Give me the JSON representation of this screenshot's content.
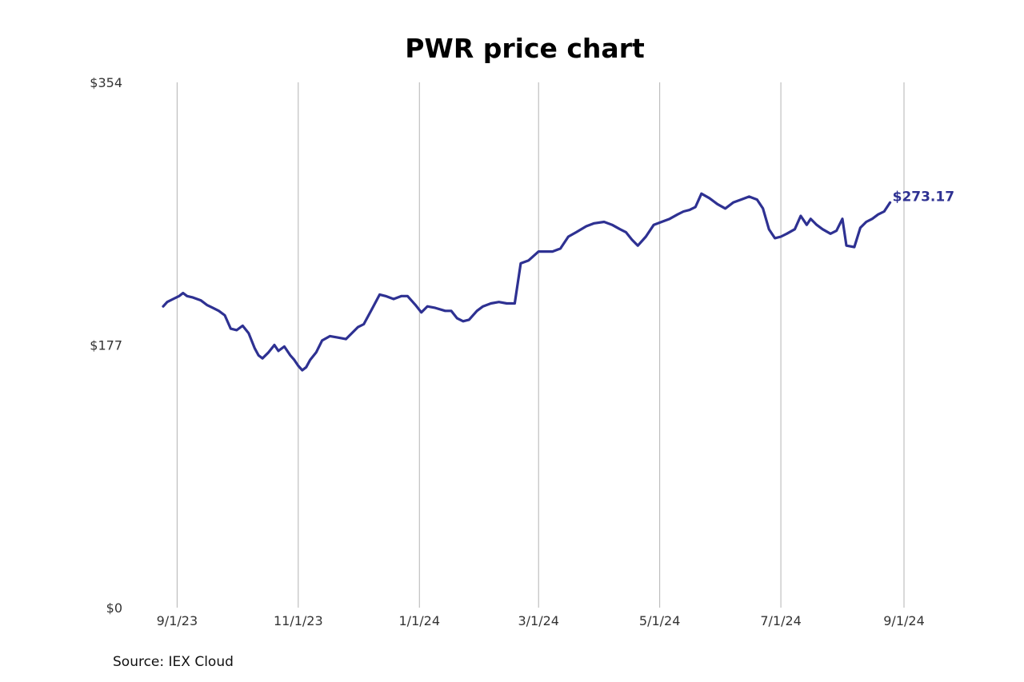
{
  "chart_data": {
    "type": "line",
    "title": "PWR price chart",
    "source": "Source: IEX Cloud",
    "last_value_label": "$273.17",
    "line_color": "#2e3192",
    "y_axis": {
      "min": 0,
      "max": 354,
      "ticks": [
        {
          "value": 354,
          "label": "$354"
        },
        {
          "value": 177,
          "label": "$177"
        },
        {
          "value": 0,
          "label": "$0"
        }
      ]
    },
    "x_axis": {
      "start": "2023-08-25",
      "end": "2024-09-01",
      "gridlines": true,
      "ticks": [
        {
          "date": "2023-09-01",
          "label": "9/1/23"
        },
        {
          "date": "2023-11-01",
          "label": "11/1/23"
        },
        {
          "date": "2024-01-01",
          "label": "1/1/24"
        },
        {
          "date": "2024-03-01",
          "label": "3/1/24"
        },
        {
          "date": "2024-05-01",
          "label": "5/1/24"
        },
        {
          "date": "2024-07-01",
          "label": "7/1/24"
        },
        {
          "date": "2024-09-01",
          "label": "9/1/24"
        }
      ]
    },
    "series": [
      {
        "points": [
          [
            "2023-08-25",
            203
          ],
          [
            "2023-08-27",
            206
          ],
          [
            "2023-08-30",
            208
          ],
          [
            "2023-09-02",
            210
          ],
          [
            "2023-09-04",
            212
          ],
          [
            "2023-09-06",
            210
          ],
          [
            "2023-09-09",
            209
          ],
          [
            "2023-09-13",
            207
          ],
          [
            "2023-09-16",
            204
          ],
          [
            "2023-09-19",
            202
          ],
          [
            "2023-09-22",
            200
          ],
          [
            "2023-09-25",
            197
          ],
          [
            "2023-09-28",
            188
          ],
          [
            "2023-10-01",
            187
          ],
          [
            "2023-10-04",
            190
          ],
          [
            "2023-10-07",
            185
          ],
          [
            "2023-10-10",
            175
          ],
          [
            "2023-10-12",
            170
          ],
          [
            "2023-10-14",
            168
          ],
          [
            "2023-10-17",
            172
          ],
          [
            "2023-10-20",
            177
          ],
          [
            "2023-10-22",
            173
          ],
          [
            "2023-10-25",
            176
          ],
          [
            "2023-10-28",
            170
          ],
          [
            "2023-10-30",
            167
          ],
          [
            "2023-11-01",
            163
          ],
          [
            "2023-11-03",
            160
          ],
          [
            "2023-11-05",
            162
          ],
          [
            "2023-11-07",
            167
          ],
          [
            "2023-11-10",
            172
          ],
          [
            "2023-11-13",
            180
          ],
          [
            "2023-11-17",
            183
          ],
          [
            "2023-11-21",
            182
          ],
          [
            "2023-11-25",
            181
          ],
          [
            "2023-11-28",
            185
          ],
          [
            "2023-12-01",
            189
          ],
          [
            "2023-12-04",
            191
          ],
          [
            "2023-12-08",
            201
          ],
          [
            "2023-12-12",
            211
          ],
          [
            "2023-12-15",
            210
          ],
          [
            "2023-12-19",
            208
          ],
          [
            "2023-12-23",
            210
          ],
          [
            "2023-12-26",
            210
          ],
          [
            "2023-12-30",
            204
          ],
          [
            "2024-01-02",
            199
          ],
          [
            "2024-01-05",
            203
          ],
          [
            "2024-01-09",
            202
          ],
          [
            "2024-01-14",
            200
          ],
          [
            "2024-01-17",
            200
          ],
          [
            "2024-01-20",
            195
          ],
          [
            "2024-01-23",
            193
          ],
          [
            "2024-01-26",
            194
          ],
          [
            "2024-01-30",
            200
          ],
          [
            "2024-02-02",
            203
          ],
          [
            "2024-02-06",
            205
          ],
          [
            "2024-02-10",
            206
          ],
          [
            "2024-02-14",
            205
          ],
          [
            "2024-02-18",
            205
          ],
          [
            "2024-02-21",
            232
          ],
          [
            "2024-02-25",
            234
          ],
          [
            "2024-03-01",
            240
          ],
          [
            "2024-03-04",
            240
          ],
          [
            "2024-03-08",
            240
          ],
          [
            "2024-03-12",
            242
          ],
          [
            "2024-03-16",
            250
          ],
          [
            "2024-03-20",
            253
          ],
          [
            "2024-03-25",
            257
          ],
          [
            "2024-03-29",
            259
          ],
          [
            "2024-04-03",
            260
          ],
          [
            "2024-04-07",
            258
          ],
          [
            "2024-04-11",
            255
          ],
          [
            "2024-04-14",
            253
          ],
          [
            "2024-04-17",
            248
          ],
          [
            "2024-04-20",
            244
          ],
          [
            "2024-04-24",
            250
          ],
          [
            "2024-04-28",
            258
          ],
          [
            "2024-05-02",
            260
          ],
          [
            "2024-05-06",
            262
          ],
          [
            "2024-05-10",
            265
          ],
          [
            "2024-05-13",
            267
          ],
          [
            "2024-05-16",
            268
          ],
          [
            "2024-05-19",
            270
          ],
          [
            "2024-05-22",
            279
          ],
          [
            "2024-05-26",
            276
          ],
          [
            "2024-05-30",
            272
          ],
          [
            "2024-06-03",
            269
          ],
          [
            "2024-06-07",
            273
          ],
          [
            "2024-06-11",
            275
          ],
          [
            "2024-06-15",
            277
          ],
          [
            "2024-06-19",
            275
          ],
          [
            "2024-06-22",
            269
          ],
          [
            "2024-06-25",
            255
          ],
          [
            "2024-06-28",
            249
          ],
          [
            "2024-07-01",
            250
          ],
          [
            "2024-07-04",
            252
          ],
          [
            "2024-07-08",
            255
          ],
          [
            "2024-07-11",
            264
          ],
          [
            "2024-07-14",
            258
          ],
          [
            "2024-07-16",
            262
          ],
          [
            "2024-07-19",
            258
          ],
          [
            "2024-07-22",
            255
          ],
          [
            "2024-07-26",
            252
          ],
          [
            "2024-07-29",
            254
          ],
          [
            "2024-08-01",
            262
          ],
          [
            "2024-08-03",
            244
          ],
          [
            "2024-08-07",
            243
          ],
          [
            "2024-08-10",
            256
          ],
          [
            "2024-08-13",
            260
          ],
          [
            "2024-08-16",
            262
          ],
          [
            "2024-08-19",
            265
          ],
          [
            "2024-08-22",
            267
          ],
          [
            "2024-08-25",
            273
          ]
        ]
      }
    ]
  }
}
